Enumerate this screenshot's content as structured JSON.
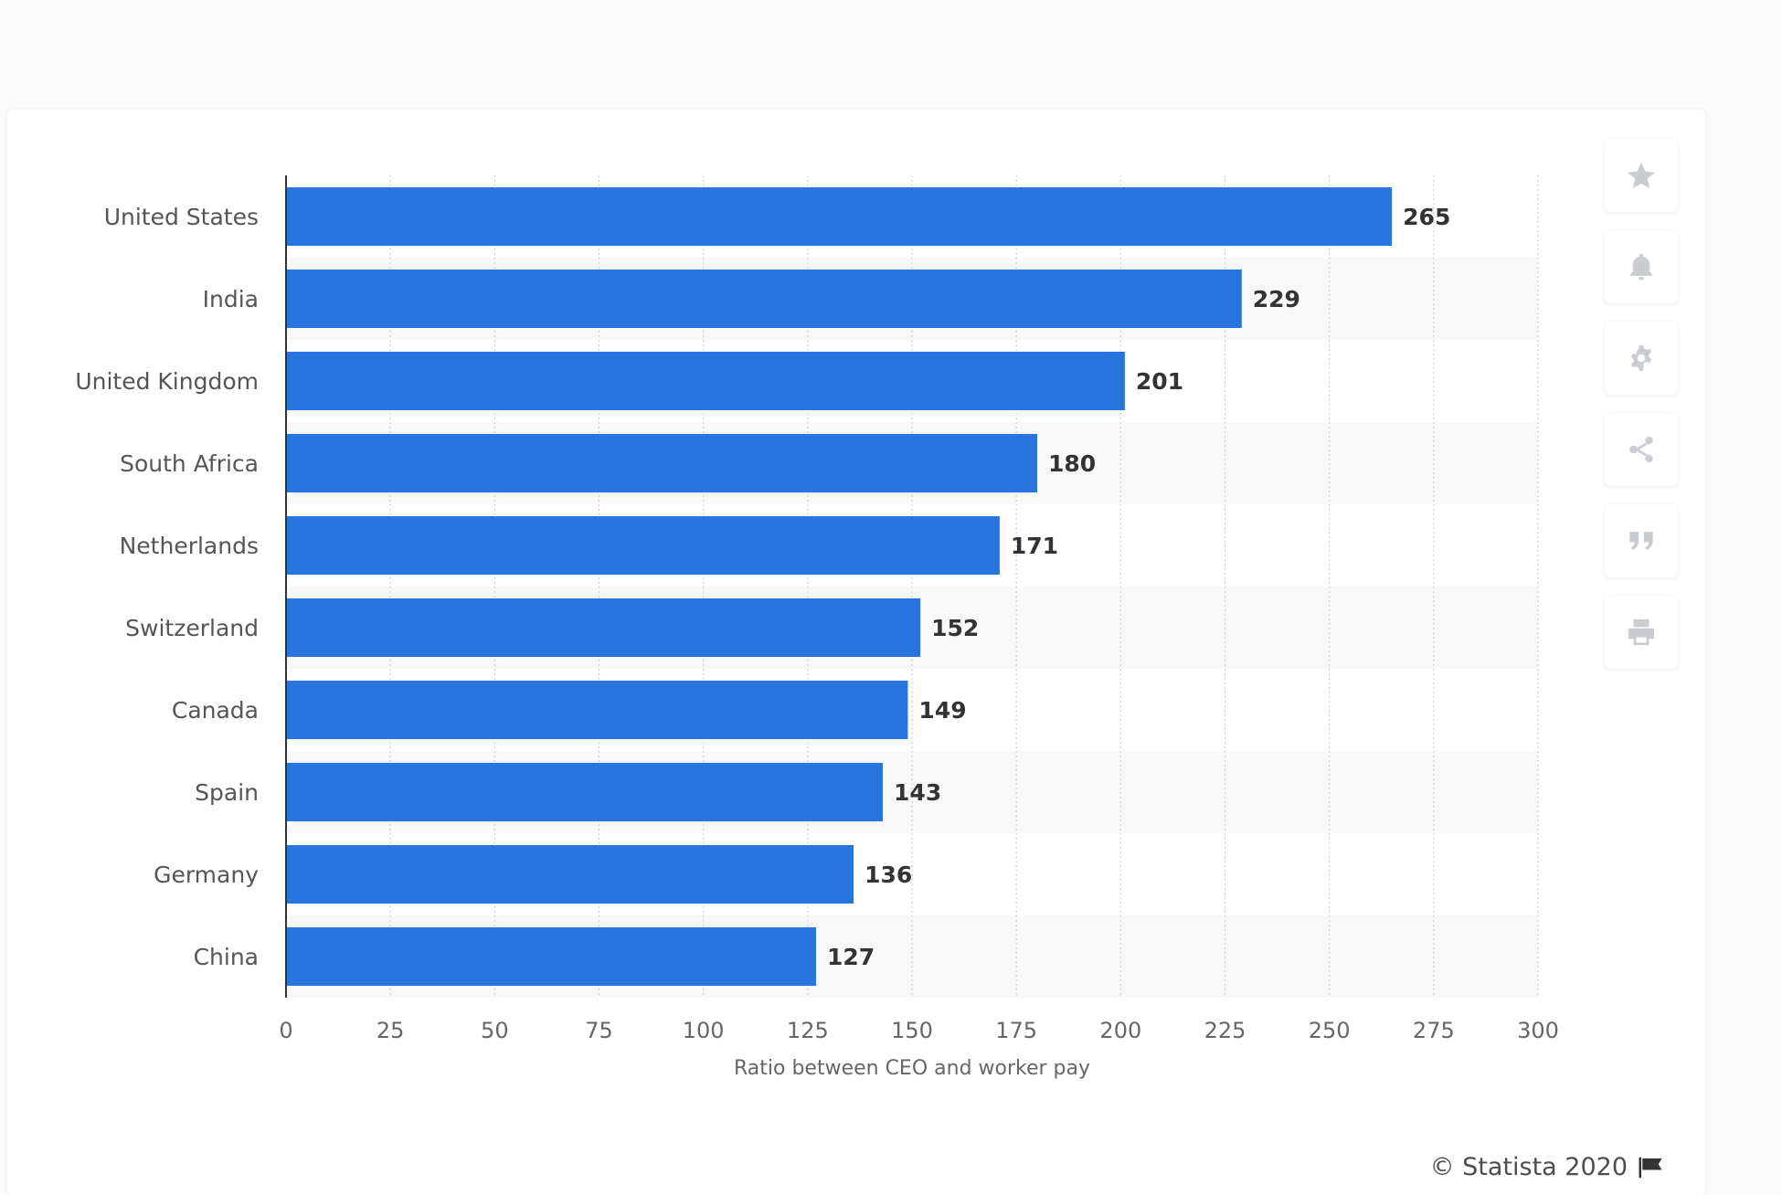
{
  "chart_data": {
    "type": "bar",
    "orientation": "horizontal",
    "categories": [
      "United States",
      "India",
      "United Kingdom",
      "South Africa",
      "Netherlands",
      "Switzerland",
      "Canada",
      "Spain",
      "Germany",
      "China"
    ],
    "values": [
      265,
      229,
      201,
      180,
      171,
      152,
      149,
      143,
      136,
      127
    ],
    "xlabel": "Ratio between CEO and worker pay",
    "ylabel": "",
    "xlim": [
      0,
      300
    ],
    "xticks": [
      0,
      25,
      50,
      75,
      100,
      125,
      150,
      175,
      200,
      225,
      250,
      275,
      300
    ],
    "grid": true,
    "bar_color": "#2876dd",
    "band_color": "#f8f8f8"
  },
  "credit": "© Statista 2020",
  "toolbar": {
    "items": [
      {
        "name": "favorite",
        "icon": "star-icon"
      },
      {
        "name": "notification",
        "icon": "bell-icon"
      },
      {
        "name": "settings",
        "icon": "gear-icon"
      },
      {
        "name": "share",
        "icon": "share-icon"
      },
      {
        "name": "cite",
        "icon": "quote-icon"
      },
      {
        "name": "print",
        "icon": "print-icon"
      }
    ]
  }
}
